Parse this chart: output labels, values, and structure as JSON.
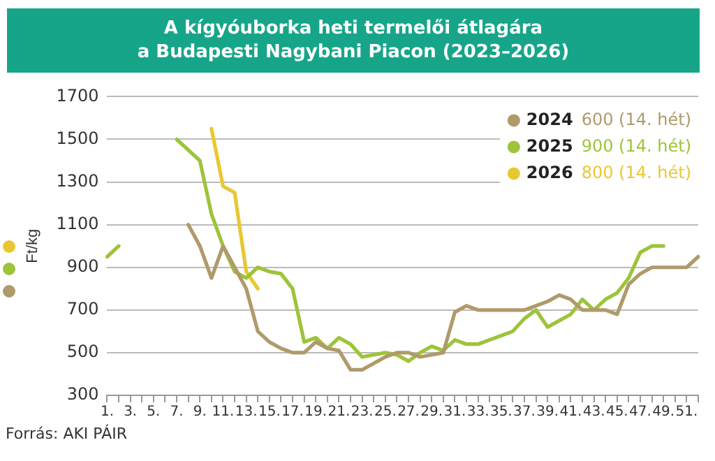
{
  "chart_data": {
    "type": "line",
    "title": "A kígyóuborka heti termelői átlagára\na Budapesti Nagybani Piacon (2023–2026)",
    "ylabel": "Ft/kg",
    "categories": [
      "1.",
      null,
      "3.",
      null,
      "5.",
      null,
      "7.",
      null,
      "9.",
      null,
      "11.",
      null,
      "13.",
      null,
      "15.",
      null,
      "17.",
      null,
      "19.",
      null,
      "21.",
      null,
      "23.",
      null,
      "25.",
      null,
      "27.",
      null,
      "29.",
      null,
      "31.",
      null,
      "33.",
      null,
      "35.",
      null,
      "37.",
      null,
      "39.",
      null,
      "41.",
      null,
      "43.",
      null,
      "45.",
      null,
      "47.",
      null,
      "49.",
      null,
      "51.",
      null
    ],
    "series": [
      {
        "name": "2024",
        "color": "#b09a6b",
        "values": [
          null,
          null,
          null,
          null,
          null,
          null,
          null,
          1100,
          1000,
          850,
          1000,
          900,
          800,
          600,
          550,
          520,
          500,
          500,
          550,
          520,
          510,
          420,
          420,
          450,
          480,
          500,
          500,
          480,
          490,
          500,
          690,
          720,
          700,
          700,
          700,
          700,
          700,
          720,
          740,
          770,
          750,
          700,
          700,
          700,
          680,
          820,
          870,
          900,
          900,
          900,
          900,
          950
        ]
      },
      {
        "name": "2025",
        "color": "#9dc43a",
        "values": [
          950,
          1000,
          null,
          null,
          null,
          null,
          1500,
          1450,
          1400,
          1150,
          1000,
          880,
          850,
          900,
          880,
          870,
          800,
          550,
          570,
          520,
          570,
          540,
          480,
          490,
          500,
          490,
          460,
          500,
          530,
          510,
          560,
          540,
          540,
          560,
          580,
          600,
          660,
          700,
          620,
          650,
          680,
          750,
          700,
          750,
          780,
          850,
          970,
          1000,
          1000,
          null,
          null,
          null
        ]
      },
      {
        "name": "2026",
        "color": "#e8c832",
        "values": [
          null,
          null,
          null,
          null,
          null,
          null,
          null,
          null,
          null,
          1550,
          1280,
          1250,
          880,
          800,
          null,
          null,
          null,
          null,
          null,
          null,
          null,
          null,
          null,
          null,
          null,
          null,
          null,
          null,
          null,
          null,
          null,
          null,
          null,
          null,
          null,
          null,
          null,
          null,
          null,
          null,
          null,
          null,
          null,
          null,
          null,
          null,
          null,
          null,
          null,
          null,
          null,
          null
        ]
      }
    ],
    "ylim": [
      300,
      1700
    ],
    "yticks": [
      300,
      500,
      700,
      900,
      1100,
      1300,
      1500,
      1700
    ],
    "grid": "y",
    "legend": "top right",
    "marker": "none",
    "line_style": "solid",
    "annotations": [
      "600 (14. hét)",
      "900 (14. hét)",
      "800 (14. hét)",
      "Forrás: AKI PÁIR"
    ]
  }
}
